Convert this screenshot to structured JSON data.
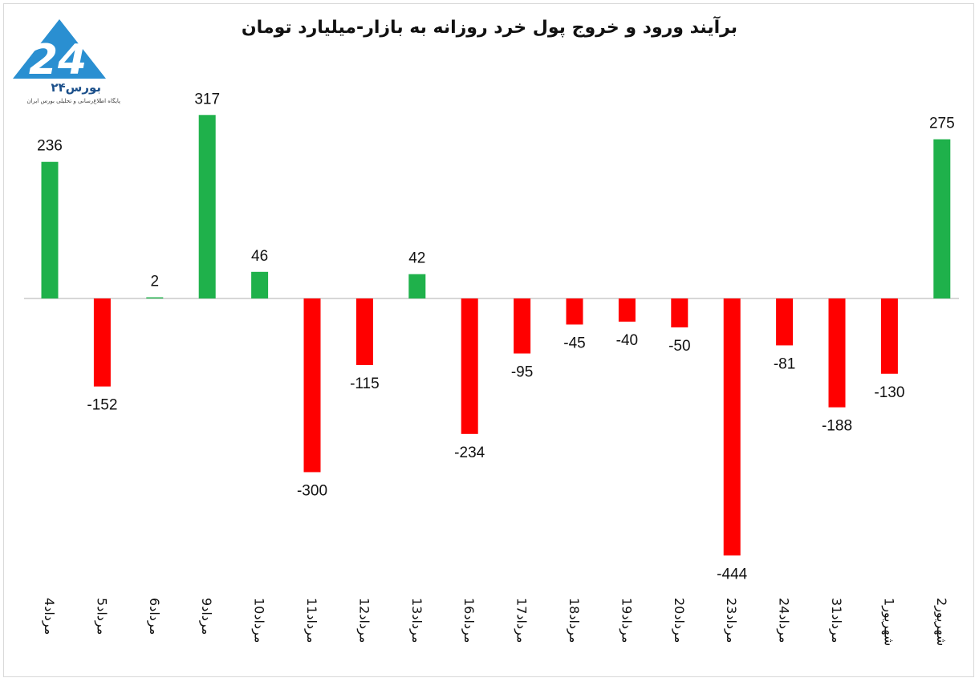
{
  "chart_data": {
    "type": "bar",
    "title": "برآیند ورود و خروج پول خرد روزانه به بازار-میلیارد تومان",
    "categories": [
      "4مرداد",
      "5مرداد",
      "6مرداد",
      "9مرداد",
      "10مرداد",
      "11مرداد",
      "12مرداد",
      "13مرداد",
      "16مرداد",
      "17مرداد",
      "18مرداد",
      "19مرداد",
      "20مرداد",
      "23مرداد",
      "24مرداد",
      "31مرداد",
      "1شهریور",
      "2شهریور"
    ],
    "values": [
      236,
      -152,
      2,
      317,
      46,
      -300,
      -115,
      42,
      -234,
      -95,
      -45,
      -40,
      -50,
      -444,
      -81,
      -188,
      -130,
      275
    ],
    "value_labels": [
      "236",
      "-152",
      "2",
      "317",
      "46",
      "-300",
      "-115",
      "42",
      "-234",
      "-95",
      "-45",
      "-40",
      "-50",
      "-444",
      "-81",
      "-188",
      "-130",
      "275"
    ],
    "positive_color": "#1fb14b",
    "negative_color": "#ff0000",
    "zero_line_color": "#bfbfbf",
    "xlabel": "",
    "ylabel": "",
    "grid": false,
    "legend": "none",
    "data_labels": true
  },
  "logo": {
    "name": "بورس۲۴",
    "tagline": "پایگاه اطلاع‌رسانی و تحلیلی بورس ایران",
    "color": "#2a8fd1"
  }
}
